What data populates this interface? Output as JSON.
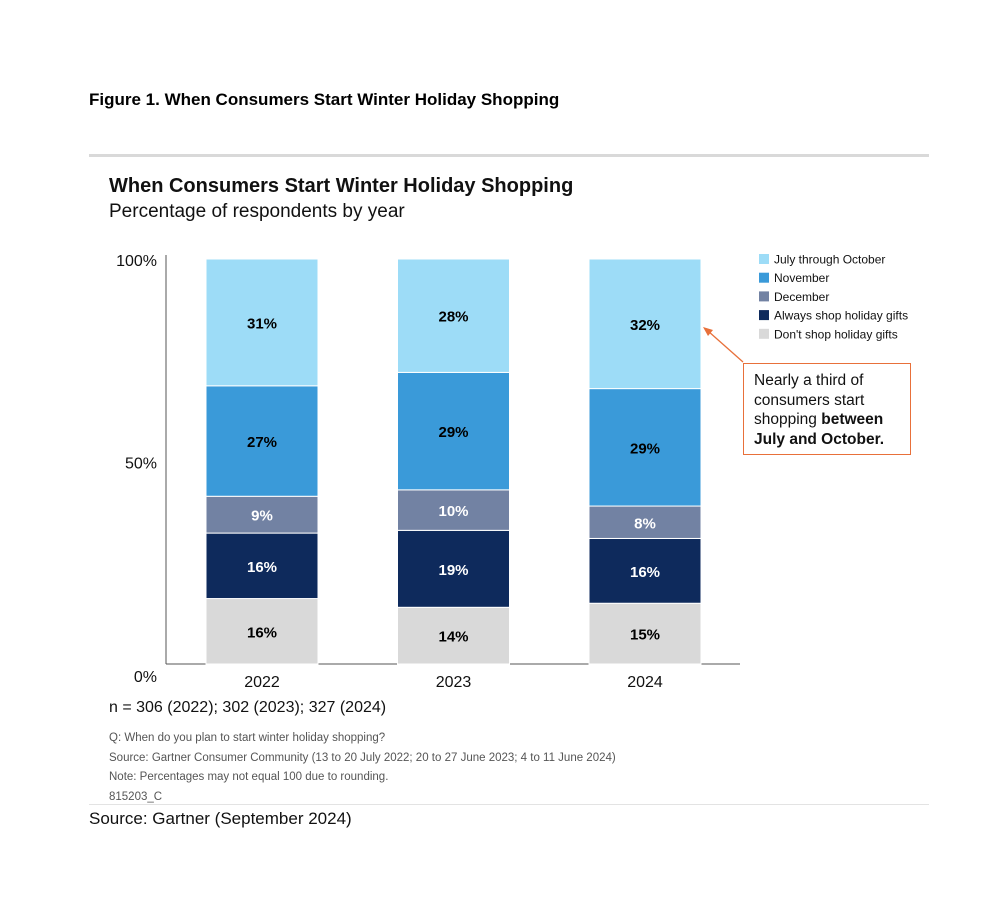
{
  "figure_title": "Figure 1. When Consumers Start Winter Holiday Shopping",
  "sample_note": "n = 306 (2022); 302 (2023); 327 (2024)",
  "footnotes": {
    "question": "Q: When do you plan to start winter holiday shopping?",
    "source": "Source: Gartner Consumer Community (13 to 20 July 2022; 20 to 27 June 2023; 4 to 11 June 2024)",
    "note": "Note: Percentages may not equal 100 due to rounding.",
    "code": "815203_C"
  },
  "page_source": "Source: Gartner (September 2024)",
  "annotation": {
    "text_plain": "Nearly a third of consumers start shopping ",
    "text_bold": "between July and October."
  },
  "chart_data": {
    "type": "bar",
    "stacked": true,
    "title": "When Consumers Start Winter Holiday Shopping",
    "subtitle": "Percentage of respondents by year",
    "categories": [
      "2022",
      "2023",
      "2024"
    ],
    "y_ticks": [
      "0%",
      "50%",
      "100%"
    ],
    "ylim": [
      0,
      100
    ],
    "legend_position": "top-right",
    "series": [
      {
        "name": "Don't shop holiday gifts",
        "color": "#d9d9d9",
        "text_color": "#000000",
        "values": [
          16,
          14,
          15
        ]
      },
      {
        "name": "Always shop holiday gifts",
        "color": "#0e2a5c",
        "text_color": "#ffffff",
        "values": [
          16,
          19,
          16
        ]
      },
      {
        "name": "December",
        "color": "#7282a3",
        "text_color": "#ffffff",
        "values": [
          9,
          10,
          8
        ]
      },
      {
        "name": "November",
        "color": "#3a9ad9",
        "text_color": "#000000",
        "values": [
          27,
          29,
          29
        ]
      },
      {
        "name": "July through October",
        "color": "#9ddcf7",
        "text_color": "#000000",
        "values": [
          31,
          28,
          32
        ]
      }
    ],
    "data_labels": [
      [
        "16%",
        "14%",
        "15%"
      ],
      [
        "16%",
        "19%",
        "16%"
      ],
      [
        "9%",
        "10%",
        "8%"
      ],
      [
        "27%",
        "29%",
        "29%"
      ],
      [
        "31%",
        "28%",
        "32%"
      ]
    ],
    "legend_order": [
      "July through October",
      "November",
      "December",
      "Always shop holiday gifts",
      "Don't shop holiday gifts"
    ]
  }
}
